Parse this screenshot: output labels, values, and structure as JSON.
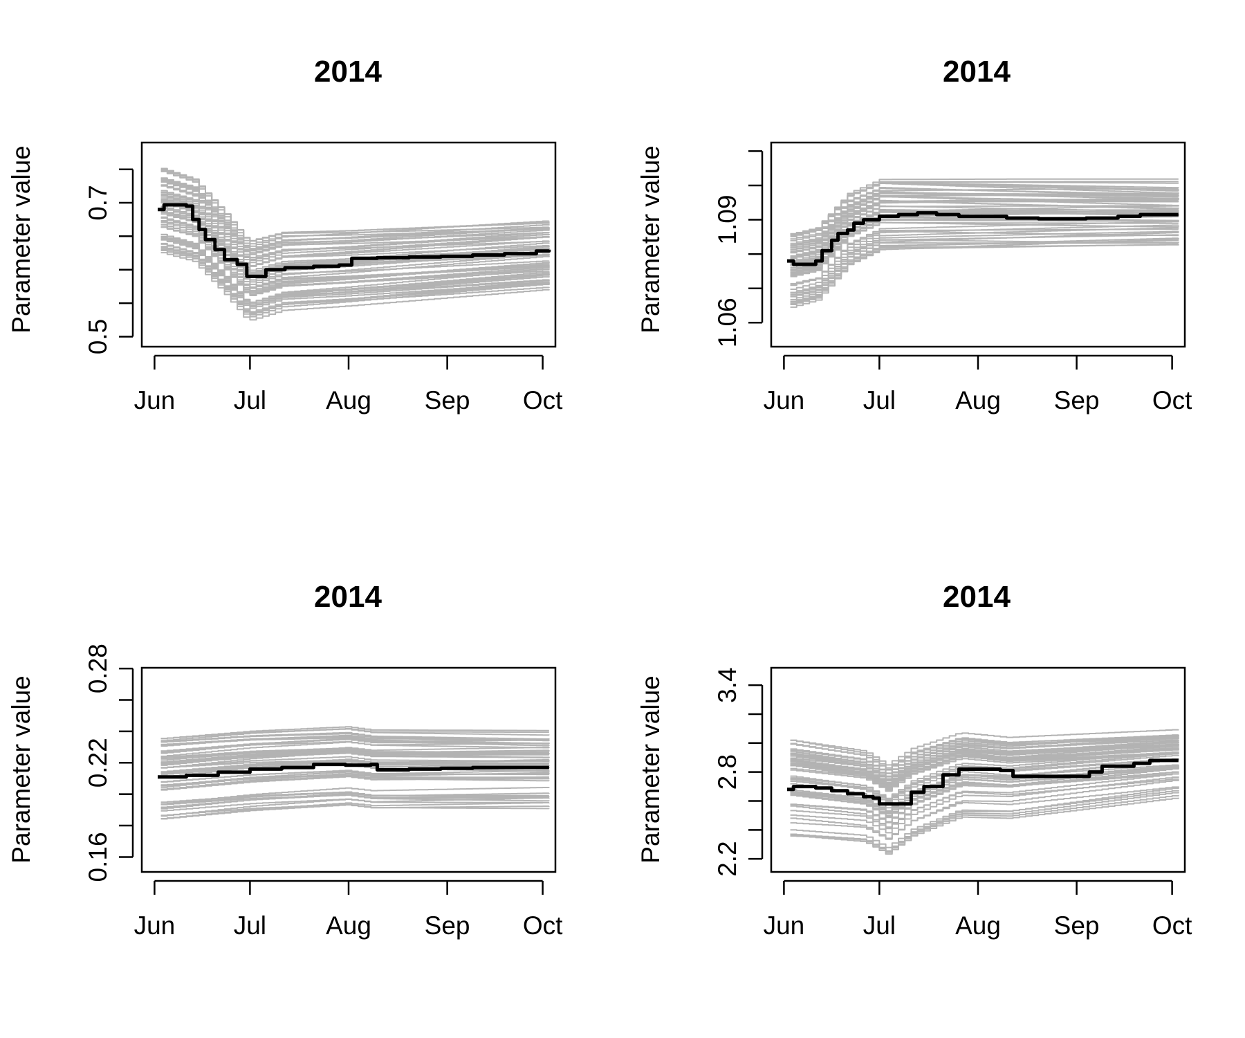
{
  "figure": {
    "background": "#ffffff",
    "ensemble_color": "#b3b3b3",
    "median_color": "#000000"
  },
  "chart_data": [
    {
      "type": "line",
      "title": "2014",
      "xlabel": "",
      "ylabel": "Parameter value",
      "x_ticks": [
        "Jun",
        "Jul",
        "Aug",
        "Sep",
        "Oct"
      ],
      "x_tick_days": [
        0,
        30,
        61,
        92,
        122
      ],
      "xlim": [
        -4,
        126
      ],
      "y_ticks": [
        0.5,
        0.55,
        0.6,
        0.65,
        0.7,
        0.75
      ],
      "y_tick_labels": [
        "0.5",
        "",
        "",
        "",
        "0.7",
        ""
      ],
      "ylim": [
        0.485,
        0.79
      ],
      "grid": false,
      "median_series": {
        "x": [
          1,
          3,
          10,
          12,
          14,
          16,
          19,
          22,
          26,
          29,
          35,
          41,
          50,
          58,
          62,
          70,
          80,
          90,
          100,
          110,
          120,
          124
        ],
        "y": [
          0.69,
          0.697,
          0.695,
          0.675,
          0.66,
          0.645,
          0.63,
          0.615,
          0.608,
          0.59,
          0.6,
          0.603,
          0.605,
          0.607,
          0.617,
          0.618,
          0.619,
          0.62,
          0.622,
          0.624,
          0.628,
          0.63
        ]
      },
      "ensemble": {
        "count": 60,
        "trend_x": [
          1,
          12,
          22,
          29,
          40,
          60,
          124
        ],
        "trend_y": [
          0.69,
          0.675,
          0.625,
          0.585,
          0.6,
          0.605,
          0.625
        ],
        "spread_start": 0.065,
        "spread_end": 0.05,
        "min_y": 0.495,
        "max_y": 0.78
      }
    },
    {
      "type": "line",
      "title": "2014",
      "xlabel": "",
      "ylabel": "Parameter value",
      "x_ticks": [
        "Jun",
        "Jul",
        "Aug",
        "Sep",
        "Oct"
      ],
      "x_tick_days": [
        0,
        30,
        61,
        92,
        122
      ],
      "xlim": [
        -4,
        126
      ],
      "y_ticks": [
        1.06,
        1.07,
        1.08,
        1.09,
        1.1,
        1.11
      ],
      "y_tick_labels": [
        "1.06",
        "",
        "",
        "1.09",
        "",
        ""
      ],
      "ylim": [
        1.053,
        1.1125
      ],
      "grid": false,
      "median_series": {
        "x": [
          1,
          3,
          10,
          12,
          15,
          17,
          20,
          22,
          25,
          30,
          36,
          42,
          48,
          55,
          62,
          70,
          80,
          95,
          105,
          112,
          124
        ],
        "y": [
          1.078,
          1.077,
          1.078,
          1.081,
          1.084,
          1.086,
          1.087,
          1.089,
          1.09,
          1.091,
          1.0915,
          1.092,
          1.0915,
          1.091,
          1.091,
          1.0905,
          1.0903,
          1.0905,
          1.091,
          1.0915,
          1.0915
        ]
      },
      "ensemble": {
        "count": 60,
        "trend_x": [
          1,
          10,
          20,
          30,
          124
        ],
        "trend_y": [
          1.075,
          1.077,
          1.087,
          1.091,
          1.091
        ],
        "spread_start": 0.012,
        "spread_end": 0.01,
        "min_y": 1.054,
        "max_y": 1.111
      }
    },
    {
      "type": "line",
      "title": "2014",
      "xlabel": "",
      "ylabel": "Parameter value",
      "x_ticks": [
        "Jun",
        "Jul",
        "Aug",
        "Sep",
        "Oct"
      ],
      "x_tick_days": [
        0,
        30,
        61,
        92,
        122
      ],
      "xlim": [
        -4,
        126
      ],
      "y_ticks": [
        0.16,
        0.18,
        0.2,
        0.22,
        0.24,
        0.26,
        0.28
      ],
      "y_tick_labels": [
        "0.16",
        "",
        "",
        "0.22",
        "",
        "",
        "0.28"
      ],
      "ylim": [
        0.1505,
        0.2805
      ],
      "grid": false,
      "median_series": {
        "x": [
          1,
          10,
          20,
          30,
          40,
          50,
          60,
          68,
          70,
          80,
          90,
          100,
          110,
          124
        ],
        "y": [
          0.211,
          0.212,
          0.214,
          0.216,
          0.217,
          0.219,
          0.2185,
          0.219,
          0.2155,
          0.216,
          0.2165,
          0.217,
          0.217,
          0.217
        ]
      },
      "ensemble": {
        "count": 60,
        "trend_x": [
          1,
          30,
          60,
          68,
          124
        ],
        "trend_y": [
          0.21,
          0.215,
          0.218,
          0.216,
          0.216
        ],
        "spread_start": 0.026,
        "spread_end": 0.024,
        "min_y": 0.155,
        "max_y": 0.272
      }
    },
    {
      "type": "line",
      "title": "2014",
      "xlabel": "",
      "ylabel": "Parameter value",
      "x_ticks": [
        "Jun",
        "Jul",
        "Aug",
        "Sep",
        "Oct"
      ],
      "x_tick_days": [
        0,
        30,
        61,
        92,
        122
      ],
      "xlim": [
        -4,
        126
      ],
      "y_ticks": [
        2.2,
        2.4,
        2.6,
        2.8,
        3.0,
        3.2,
        3.4
      ],
      "y_tick_labels": [
        "2.2",
        "",
        "",
        "2.8",
        "",
        "",
        "3.4"
      ],
      "ylim": [
        2.11,
        3.52
      ],
      "grid": false,
      "median_series": {
        "x": [
          1,
          3,
          10,
          15,
          20,
          25,
          28,
          30,
          35,
          40,
          44,
          50,
          55,
          60,
          68,
          72,
          80,
          92,
          96,
          100,
          110,
          115,
          124
        ],
        "y": [
          2.68,
          2.7,
          2.69,
          2.67,
          2.65,
          2.63,
          2.62,
          2.58,
          2.58,
          2.66,
          2.7,
          2.78,
          2.82,
          2.82,
          2.81,
          2.77,
          2.77,
          2.77,
          2.8,
          2.84,
          2.86,
          2.88,
          2.88
        ]
      },
      "ensemble": {
        "count": 60,
        "trend_x": [
          1,
          25,
          32,
          40,
          55,
          70,
          124
        ],
        "trend_y": [
          2.7,
          2.64,
          2.55,
          2.67,
          2.79,
          2.77,
          2.87
        ],
        "spread_start": 0.34,
        "spread_end": 0.22,
        "min_y": 2.15,
        "max_y": 3.48
      }
    }
  ]
}
